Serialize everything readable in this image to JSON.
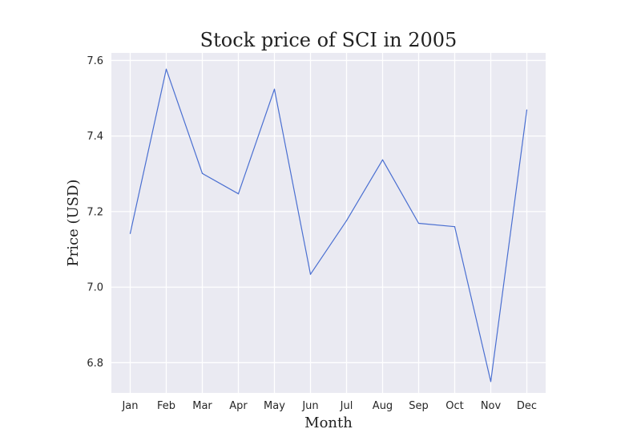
{
  "chart_data": {
    "type": "line",
    "title": "Stock price of SCI in 2005",
    "xlabel": "Month",
    "ylabel": "Price (USD)",
    "categories": [
      "Jan",
      "Feb",
      "Mar",
      "Apr",
      "May",
      "Jun",
      "Jul",
      "Aug",
      "Sep",
      "Oct",
      "Nov",
      "Dec"
    ],
    "series": [
      {
        "values": [
          7.142,
          7.577,
          7.301,
          7.247,
          7.524,
          7.034,
          7.176,
          7.337,
          7.169,
          7.16,
          6.75,
          7.469
        ]
      }
    ],
    "ylim": [
      6.72,
      7.62
    ],
    "yticks": [
      "6.8",
      "7.0",
      "7.2",
      "7.4",
      "7.6"
    ],
    "grid": true,
    "legend": "none",
    "colors": {
      "plot_background": "#eaeaf2",
      "line": "#4a6fd1",
      "grid": "#ffffff"
    }
  }
}
